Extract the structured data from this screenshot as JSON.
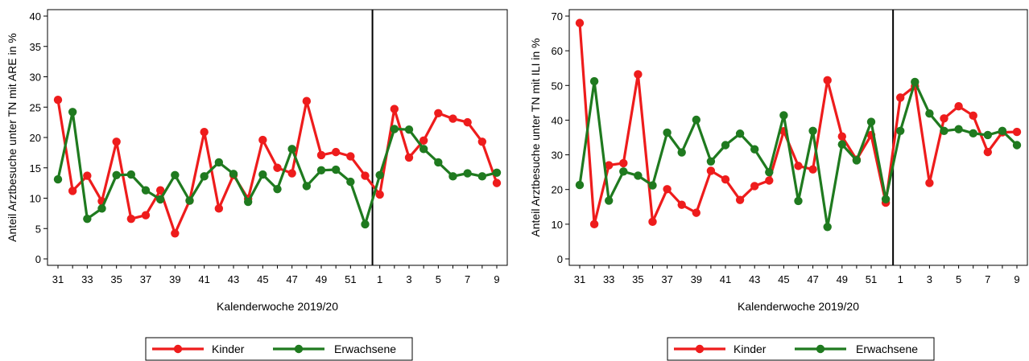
{
  "colors": {
    "kinder": "#ee1c1c",
    "erwachsene": "#1f7a1f"
  },
  "chart_data": [
    {
      "type": "line",
      "ylabel": "Anteil Arztbesuche unter TN mit ARE in %",
      "xlabel": "Kalenderwoche 2019/20",
      "ylim": [
        0,
        40
      ],
      "yticks": [
        "0",
        "5",
        "10",
        "15",
        "20",
        "25",
        "30",
        "35",
        "40"
      ],
      "xticks": [
        "31",
        "33",
        "35",
        "37",
        "39",
        "41",
        "43",
        "45",
        "47",
        "49",
        "51",
        "1",
        "3",
        "5",
        "7",
        "9"
      ],
      "x": [
        "31",
        "32",
        "33",
        "34",
        "35",
        "36",
        "37",
        "38",
        "39",
        "40",
        "41",
        "42",
        "43",
        "44",
        "45",
        "46",
        "47",
        "48",
        "49",
        "50",
        "51",
        "52",
        "1",
        "2",
        "3",
        "4",
        "5",
        "6",
        "7",
        "8",
        "9"
      ],
      "year_break_after": "52",
      "legend_position": "bottom",
      "series": [
        {
          "name": "Kinder",
          "values": [
            26.2,
            11.2,
            13.7,
            9.5,
            19.3,
            6.6,
            7.2,
            11.3,
            4.2,
            9.6,
            20.9,
            8.3,
            13.8,
            9.9,
            19.6,
            15.0,
            14.1,
            26.0,
            17.1,
            17.6,
            16.9,
            13.7,
            10.6,
            24.7,
            16.7,
            19.5,
            24.0,
            23.1,
            22.5,
            19.3,
            12.5
          ]
        },
        {
          "name": "Erwachsene",
          "values": [
            13.1,
            24.2,
            6.6,
            8.3,
            13.8,
            13.9,
            11.3,
            9.8,
            13.8,
            9.6,
            13.6,
            15.9,
            14.0,
            9.4,
            13.9,
            11.5,
            18.1,
            12.0,
            14.6,
            14.7,
            12.7,
            5.7,
            13.8,
            21.4,
            21.3,
            18.1,
            15.9,
            13.6,
            14.1,
            13.6,
            14.2
          ]
        }
      ]
    },
    {
      "type": "line",
      "ylabel": "Anteil Arztbesuche unter TN mit ILI in %",
      "xlabel": "Kalenderwoche 2019/20",
      "ylim": [
        0,
        70
      ],
      "yticks": [
        "0",
        "10",
        "20",
        "30",
        "40",
        "50",
        "60",
        "70"
      ],
      "xticks": [
        "31",
        "33",
        "35",
        "37",
        "39",
        "41",
        "43",
        "45",
        "47",
        "49",
        "51",
        "1",
        "3",
        "5",
        "7",
        "9"
      ],
      "x": [
        "31",
        "32",
        "33",
        "34",
        "35",
        "36",
        "37",
        "38",
        "39",
        "40",
        "41",
        "42",
        "43",
        "44",
        "45",
        "46",
        "47",
        "48",
        "49",
        "50",
        "51",
        "52",
        "1",
        "2",
        "3",
        "4",
        "5",
        "6",
        "7",
        "8",
        "9"
      ],
      "year_break_after": "52",
      "legend_position": "bottom",
      "series": [
        {
          "name": "Kinder",
          "values": [
            68.0,
            10.0,
            27.0,
            27.6,
            53.2,
            10.7,
            20.1,
            15.6,
            13.3,
            25.4,
            22.9,
            17.0,
            21.0,
            22.6,
            36.8,
            26.8,
            25.8,
            51.5,
            35.3,
            28.6,
            35.7,
            16.2,
            46.5,
            49.8,
            21.9,
            40.5,
            44.0,
            41.3,
            30.8,
            36.5,
            36.6
          ]
        },
        {
          "name": "Erwachsene",
          "values": [
            21.3,
            51.2,
            16.8,
            25.2,
            24.0,
            21.2,
            36.4,
            30.7,
            40.1,
            28.1,
            32.8,
            36.1,
            31.6,
            25.0,
            41.4,
            16.7,
            36.9,
            9.2,
            33.0,
            28.4,
            39.5,
            17.2,
            36.9,
            51.0,
            41.9,
            36.9,
            37.4,
            36.2,
            35.7,
            36.9,
            32.8
          ]
        }
      ]
    }
  ]
}
